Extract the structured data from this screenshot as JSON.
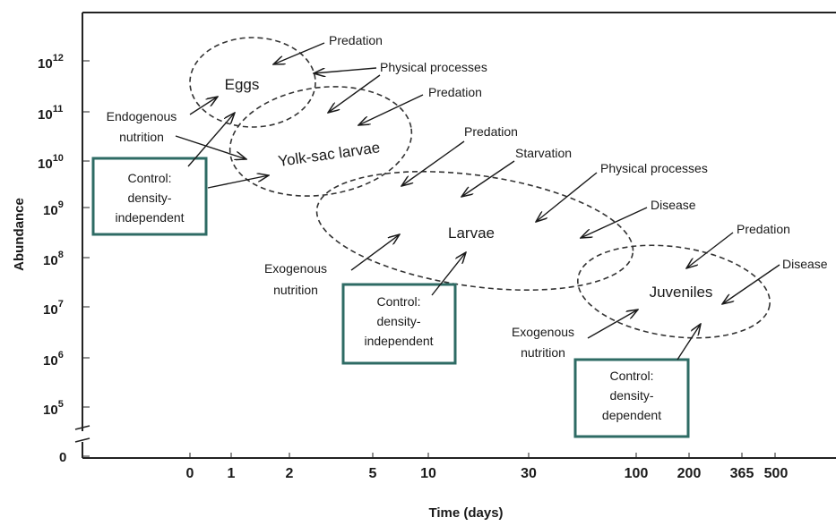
{
  "axes": {
    "x_title": "Time (days)",
    "y_title": "Abundance",
    "x_ticks": [
      "0",
      "1",
      "2",
      "5",
      "10",
      "30",
      "100",
      "200",
      "365",
      "500"
    ],
    "y_ticks": [
      {
        "base": "10",
        "exp": "12"
      },
      {
        "base": "10",
        "exp": "11"
      },
      {
        "base": "10",
        "exp": "10"
      },
      {
        "base": "10",
        "exp": "9"
      },
      {
        "base": "10",
        "exp": "8"
      },
      {
        "base": "10",
        "exp": "7"
      },
      {
        "base": "10",
        "exp": "6"
      },
      {
        "base": "10",
        "exp": "5"
      },
      {
        "base": "0",
        "exp": ""
      }
    ]
  },
  "stages": {
    "eggs": "Eggs",
    "yolk_sac": "Yolk-sac larvae",
    "larvae": "Larvae",
    "juveniles": "Juveniles"
  },
  "factors": {
    "predation_eggs": "Predation",
    "physical_eggs": "Physical processes",
    "predation_yolk": "Predation",
    "predation_larvae": "Predation",
    "starvation": "Starvation",
    "physical_larvae": "Physical processes",
    "disease_larvae": "Disease",
    "predation_juv": "Predation",
    "disease_juv": "Disease"
  },
  "nutrition": {
    "endogenous_1": "Endogenous",
    "endogenous_2": "nutrition",
    "exo_larvae_1": "Exogenous",
    "exo_larvae_2": "nutrition",
    "exo_juv_1": "Exogenous",
    "exo_juv_2": "nutrition"
  },
  "controls": {
    "c1": [
      "Control:",
      "density-",
      "independent"
    ],
    "c2": [
      "Control:",
      "density-",
      "independent"
    ],
    "c3": [
      "Control:",
      "density-",
      "dependent"
    ]
  }
}
